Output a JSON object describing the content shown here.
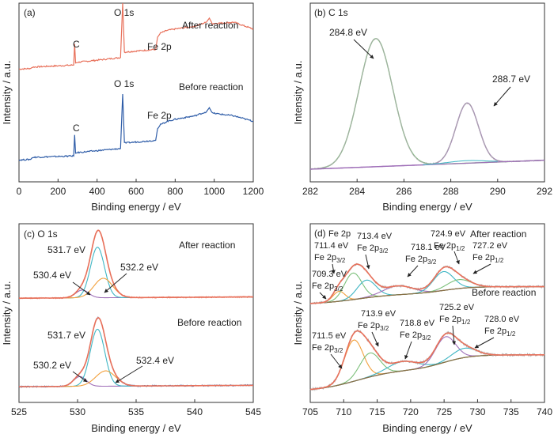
{
  "colors": {
    "after": "#e8705a",
    "before": "#2f5da8",
    "axis": "#333333",
    "fit_green": "#7cc07a",
    "fit_purple": "#9f6fb8",
    "fit_cyan": "#3fb6c4",
    "fit_orange": "#f2a03c",
    "fit_brown": "#8a7046",
    "fit_gray": "#aaaaaa"
  },
  "chart_data": [
    {
      "id": "a",
      "type": "line",
      "title": "(a)",
      "xlabel": "Binding energy / eV",
      "ylabel": "Intensity / a.u.",
      "xlim": [
        0,
        1200
      ],
      "xticks": [
        0,
        200,
        400,
        600,
        800,
        1000,
        1200
      ],
      "series": [
        {
          "name": "After reaction",
          "color": "#e8705a",
          "x": [
            0,
            60,
            70,
            280,
            285,
            290,
            300,
            520,
            531,
            540,
            700,
            710,
            725,
            760,
            800,
            900,
            960,
            975,
            990,
            1100,
            1200
          ],
          "y": [
            0.03,
            0.04,
            0.06,
            0.09,
            0.4,
            0.12,
            0.13,
            0.2,
            1.0,
            0.28,
            0.32,
            0.5,
            0.56,
            0.6,
            0.62,
            0.66,
            0.72,
            0.78,
            0.7,
            0.72,
            0.62
          ]
        },
        {
          "name": "Before reaction",
          "color": "#2f5da8",
          "x": [
            0,
            60,
            70,
            280,
            285,
            290,
            300,
            520,
            531,
            540,
            700,
            710,
            725,
            760,
            800,
            900,
            960,
            975,
            990,
            1100,
            1200
          ],
          "y": [
            0.03,
            0.04,
            0.07,
            0.09,
            0.4,
            0.13,
            0.14,
            0.2,
            1.0,
            0.28,
            0.32,
            0.49,
            0.55,
            0.6,
            0.63,
            0.68,
            0.74,
            0.8,
            0.72,
            0.68,
            0.6
          ]
        }
      ],
      "annotations": [
        "C",
        "O 1s",
        "Fe 2p",
        "After reaction",
        "C",
        "O 1s",
        "Fe 2p",
        "Before reaction"
      ]
    },
    {
      "id": "b",
      "type": "line",
      "title": "(b)  C 1s",
      "xlabel": "Binding energy / eV",
      "ylabel": "Intensity / a.u.",
      "xlim": [
        282,
        292
      ],
      "xticks": [
        282,
        284,
        286,
        288,
        290,
        292
      ],
      "peaks": [
        {
          "label": "284.8 eV",
          "center": 284.8,
          "height": 1.0,
          "width": 0.72,
          "color": "#7cc07a"
        },
        {
          "label": "288.7 eV",
          "center": 288.7,
          "height": 0.47,
          "width": 0.48,
          "color": "#9f6fb8"
        }
      ],
      "baseline": {
        "start": 0.0,
        "end": 0.07
      }
    },
    {
      "id": "c",
      "type": "line",
      "title": "(c)  O 1s",
      "xlabel": "Binding energy / eV",
      "ylabel": "Intensity / a.u.",
      "xlim": [
        525,
        545
      ],
      "xticks": [
        525,
        530,
        535,
        540,
        545
      ],
      "groups": [
        {
          "name": "After reaction",
          "peaks": [
            {
              "label": "530.4 eV",
              "center": 530.4,
              "height": 0.12,
              "width": 0.55
            },
            {
              "label": "531.7 eV",
              "center": 531.7,
              "height": 0.78,
              "width": 0.6
            },
            {
              "label": "532.2 eV",
              "center": 532.2,
              "height": 0.3,
              "width": 0.8
            }
          ]
        },
        {
          "name": "Before reaction",
          "peaks": [
            {
              "label": "530.2 eV",
              "center": 530.2,
              "height": 0.14,
              "width": 0.55
            },
            {
              "label": "531.7 eV",
              "center": 531.7,
              "height": 0.82,
              "width": 0.62
            },
            {
              "label": "532.4 eV",
              "center": 532.4,
              "height": 0.22,
              "width": 0.85
            }
          ]
        }
      ]
    },
    {
      "id": "d",
      "type": "line",
      "title": "(d)",
      "xlabel": "Binding energy / eV",
      "ylabel": "Intensity / a.u.",
      "xlim": [
        705,
        740
      ],
      "xticks": [
        705,
        710,
        715,
        720,
        725,
        730,
        735,
        740
      ],
      "groups": [
        {
          "name": "After reaction",
          "peaks": [
            {
              "label": "709.3 eV",
              "center": 709.3,
              "height": 0.18,
              "width": 0.9
            },
            {
              "label": "711.4 eV",
              "center": 711.4,
              "height": 0.48,
              "width": 1.3
            },
            {
              "label": "713.4 eV",
              "center": 713.4,
              "height": 0.32,
              "width": 1.4
            },
            {
              "label": "718.1 eV",
              "center": 718.1,
              "height": 0.16,
              "width": 2.2
            },
            {
              "label": "724.9 eV",
              "center": 724.9,
              "height": 0.34,
              "width": 1.5
            },
            {
              "label": "727.2 eV",
              "center": 727.2,
              "height": 0.16,
              "width": 1.8
            }
          ]
        },
        {
          "name": "Before reaction",
          "peaks": [
            {
              "label": "711.5 eV",
              "center": 711.5,
              "height": 0.62,
              "width": 1.4
            },
            {
              "label": "713.9 eV",
              "center": 713.9,
              "height": 0.36,
              "width": 1.5
            },
            {
              "label": "718.8 eV",
              "center": 718.8,
              "height": 0.14,
              "width": 2.2
            },
            {
              "label": "725.2 eV",
              "center": 725.2,
              "height": 0.38,
              "width": 1.5
            },
            {
              "label": "728.0 eV",
              "center": 728.0,
              "height": 0.14,
              "width": 1.8
            }
          ]
        }
      ]
    }
  ],
  "text": {
    "a_title": "(a)",
    "a_c_after": "C",
    "a_o_after": "O 1s",
    "a_fe_after": "Fe 2p",
    "a_after": "After reaction",
    "a_c_before": "C",
    "a_o_before": "O 1s",
    "a_fe_before": "Fe 2p",
    "a_before": "Before reaction",
    "b_title": "(b)  C 1s",
    "b_p1": "284.8 eV",
    "b_p2": "288.7 eV",
    "c_title": "(c)  O 1s",
    "c_after": "After reaction",
    "c_before": "Before reaction",
    "c_a1": "531.7 eV",
    "c_a2": "530.4 eV",
    "c_a3": "532.2 eV",
    "c_b1": "531.7 eV",
    "c_b2": "530.2 eV",
    "c_b3": "532.4 eV",
    "d_title": "(d)",
    "d_after": "After reaction",
    "d_before": "Before reaction",
    "fe2p": "Fe 2p",
    "fe": "Fe 2p",
    "p32": "3/2",
    "p12": "1/2",
    "d_a1": "711.4 eV",
    "d_a2": "713.4 eV",
    "d_a3": "709.3 eV",
    "d_a4": "718.1 eV",
    "d_a5": "724.9 eV",
    "d_a6": "727.2 eV",
    "d_b1": "711.5 eV",
    "d_b2": "713.9 eV",
    "d_b3": "718.8 eV",
    "d_b4": "725.2 eV",
    "d_b5": "728.0 eV",
    "xlabel": "Binding energy / eV",
    "ylabel": "Intensity / a.u."
  }
}
